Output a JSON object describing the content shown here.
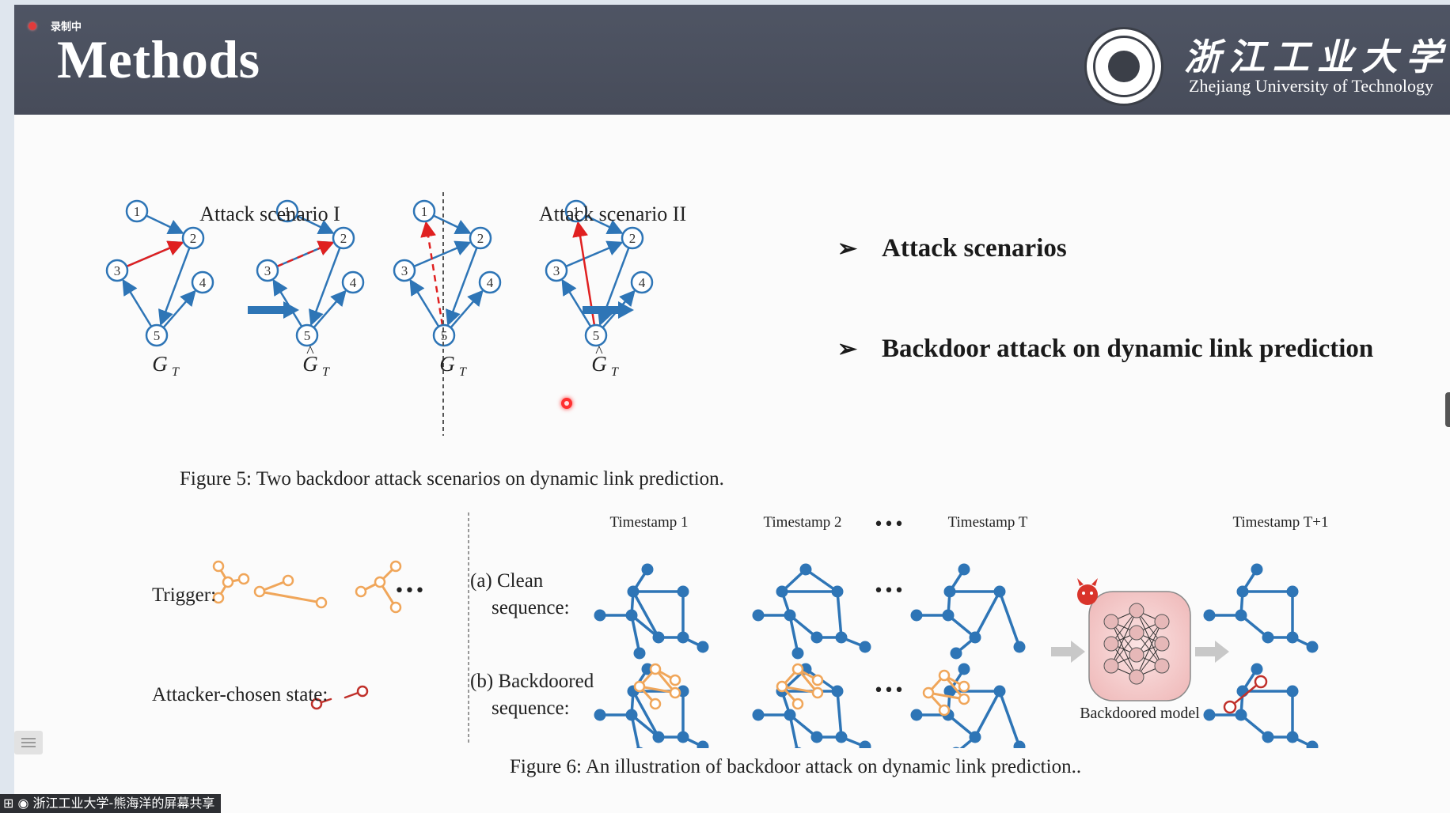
{
  "recording": {
    "label": "录制中"
  },
  "header": {
    "title": "Methods",
    "university_cn": "浙江工业大学",
    "university_en": "Zhejiang University of Technology"
  },
  "bullets": [
    {
      "marker": "➢",
      "text": "Attack scenarios"
    },
    {
      "marker": "➢",
      "text": "Backdoor attack on dynamic link prediction"
    }
  ],
  "figure5": {
    "scenario_titles": [
      "Attack scenario I",
      "Attack scenario II"
    ],
    "node_labels": [
      "1",
      "2",
      "3",
      "4",
      "5"
    ],
    "graph_label": "G",
    "graph_subscript": "T",
    "hat": "^",
    "caption": "Figure 5: Two backdoor attack scenarios on dynamic link prediction."
  },
  "figure6": {
    "timestamps": [
      "Timestamp 1",
      "Timestamp 2",
      "Timestamp T",
      "Timestamp T+1"
    ],
    "ellipsis": "•••",
    "trigger_label": "Trigger:",
    "attacker_label": "Attacker-chosen state:",
    "clean_label_1": "(a) Clean",
    "clean_label_2": "sequence:",
    "backdoored_label_1": "(b) Backdoored",
    "backdoored_label_2": "sequence:",
    "model_label": "Backdoored model",
    "caption": "Figure 6: An illustration of backdoor attack on dynamic link prediction.."
  },
  "share_bar": {
    "text": "浙江工业大学-熊海洋的屏幕共享"
  },
  "colors": {
    "header_bg": "#4a4f5d",
    "node_blue": "#2e75b6",
    "attack_red": "#e02020",
    "trigger_orange": "#f0a65a",
    "attacker_red": "#c0302a"
  }
}
